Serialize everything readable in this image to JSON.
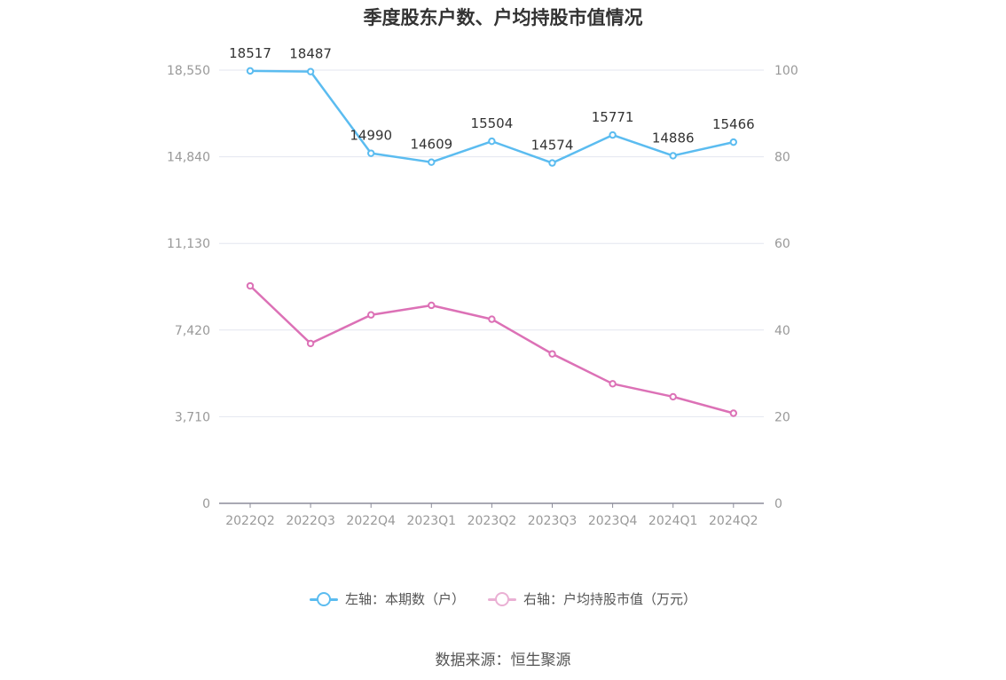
{
  "title": "季度股东户数、户均持股市值情况",
  "source": "数据来源：恒生聚源",
  "chart_data": {
    "type": "line",
    "categories": [
      "2022Q2",
      "2022Q3",
      "2022Q4",
      "2023Q1",
      "2023Q2",
      "2023Q3",
      "2023Q4",
      "2024Q1",
      "2024Q2"
    ],
    "left_axis": {
      "ticks": [
        "0",
        "3,710",
        "7,420",
        "11,130",
        "14,840",
        "18,550"
      ],
      "range": [
        0,
        18550
      ]
    },
    "right_axis": {
      "ticks": [
        "0",
        "20",
        "40",
        "60",
        "80",
        "100"
      ],
      "range": [
        0,
        100
      ]
    },
    "series": [
      {
        "name": "左轴：本期数（户）",
        "axis": "left",
        "color": "#5bbcf0",
        "values": [
          18517,
          18487,
          14990,
          14609,
          15504,
          14574,
          15771,
          14886,
          15466
        ],
        "labels": [
          "18517",
          "18487",
          "14990",
          "14609",
          "15504",
          "14574",
          "15771",
          "14886",
          "15466"
        ]
      },
      {
        "name": "右轴：户均持股市值（万元）",
        "axis": "right",
        "color": "#dc71b6",
        "values": [
          50.2,
          36.9,
          43.5,
          45.7,
          42.5,
          34.5,
          27.6,
          24.6,
          20.8
        ]
      }
    ],
    "legend_position": "bottom",
    "grid": true
  }
}
